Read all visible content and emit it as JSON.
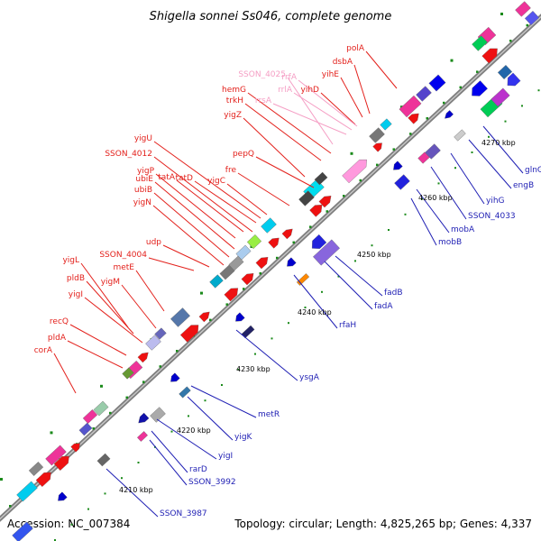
{
  "title": "Shigella sonnei Ss046, complete genome",
  "footer": {
    "accession": "Accession: NC_007384",
    "summary": "Topology: circular; Length: 4,825,265 bp; Genes: 4,337"
  },
  "ticks": [
    "4210 kbp",
    "4220 kbp",
    "4230 kbp",
    "4240 kbp",
    "4250 kbp",
    "4260 kbp",
    "4270 kbp"
  ],
  "colors": {
    "backbone": "#7f7f7f",
    "forward_label": "#e3211c",
    "rna_label": "#f59ec4",
    "reverse_label": "#1f1fb4"
  },
  "labels_forward": [
    "corA",
    "pldA",
    "recQ",
    "yigI",
    "pldB",
    "yigL",
    "yigM",
    "metE",
    "SSON_4004",
    "udp",
    "yigN",
    "ubiB",
    "ubiE",
    "yigP",
    "tatA",
    "tatD",
    "SSON_4012",
    "yigU",
    "yigC",
    "fre",
    "pepQ",
    "yigZ",
    "trkH",
    "hemG",
    "yihD",
    "yihE",
    "dsbA",
    "polA"
  ],
  "labels_rna": [
    "SSON_4025",
    "rrsA",
    "rrlA",
    "rrfA"
  ],
  "labels_reverse": [
    "SSON_3987",
    "SSON_3992",
    "rarD",
    "yigI",
    "yigK",
    "metR",
    "ysgA",
    "rfaH",
    "fadA",
    "fadB",
    "mobB",
    "mobA",
    "SSON_4033",
    "yihG",
    "engB",
    "glnG"
  ]
}
